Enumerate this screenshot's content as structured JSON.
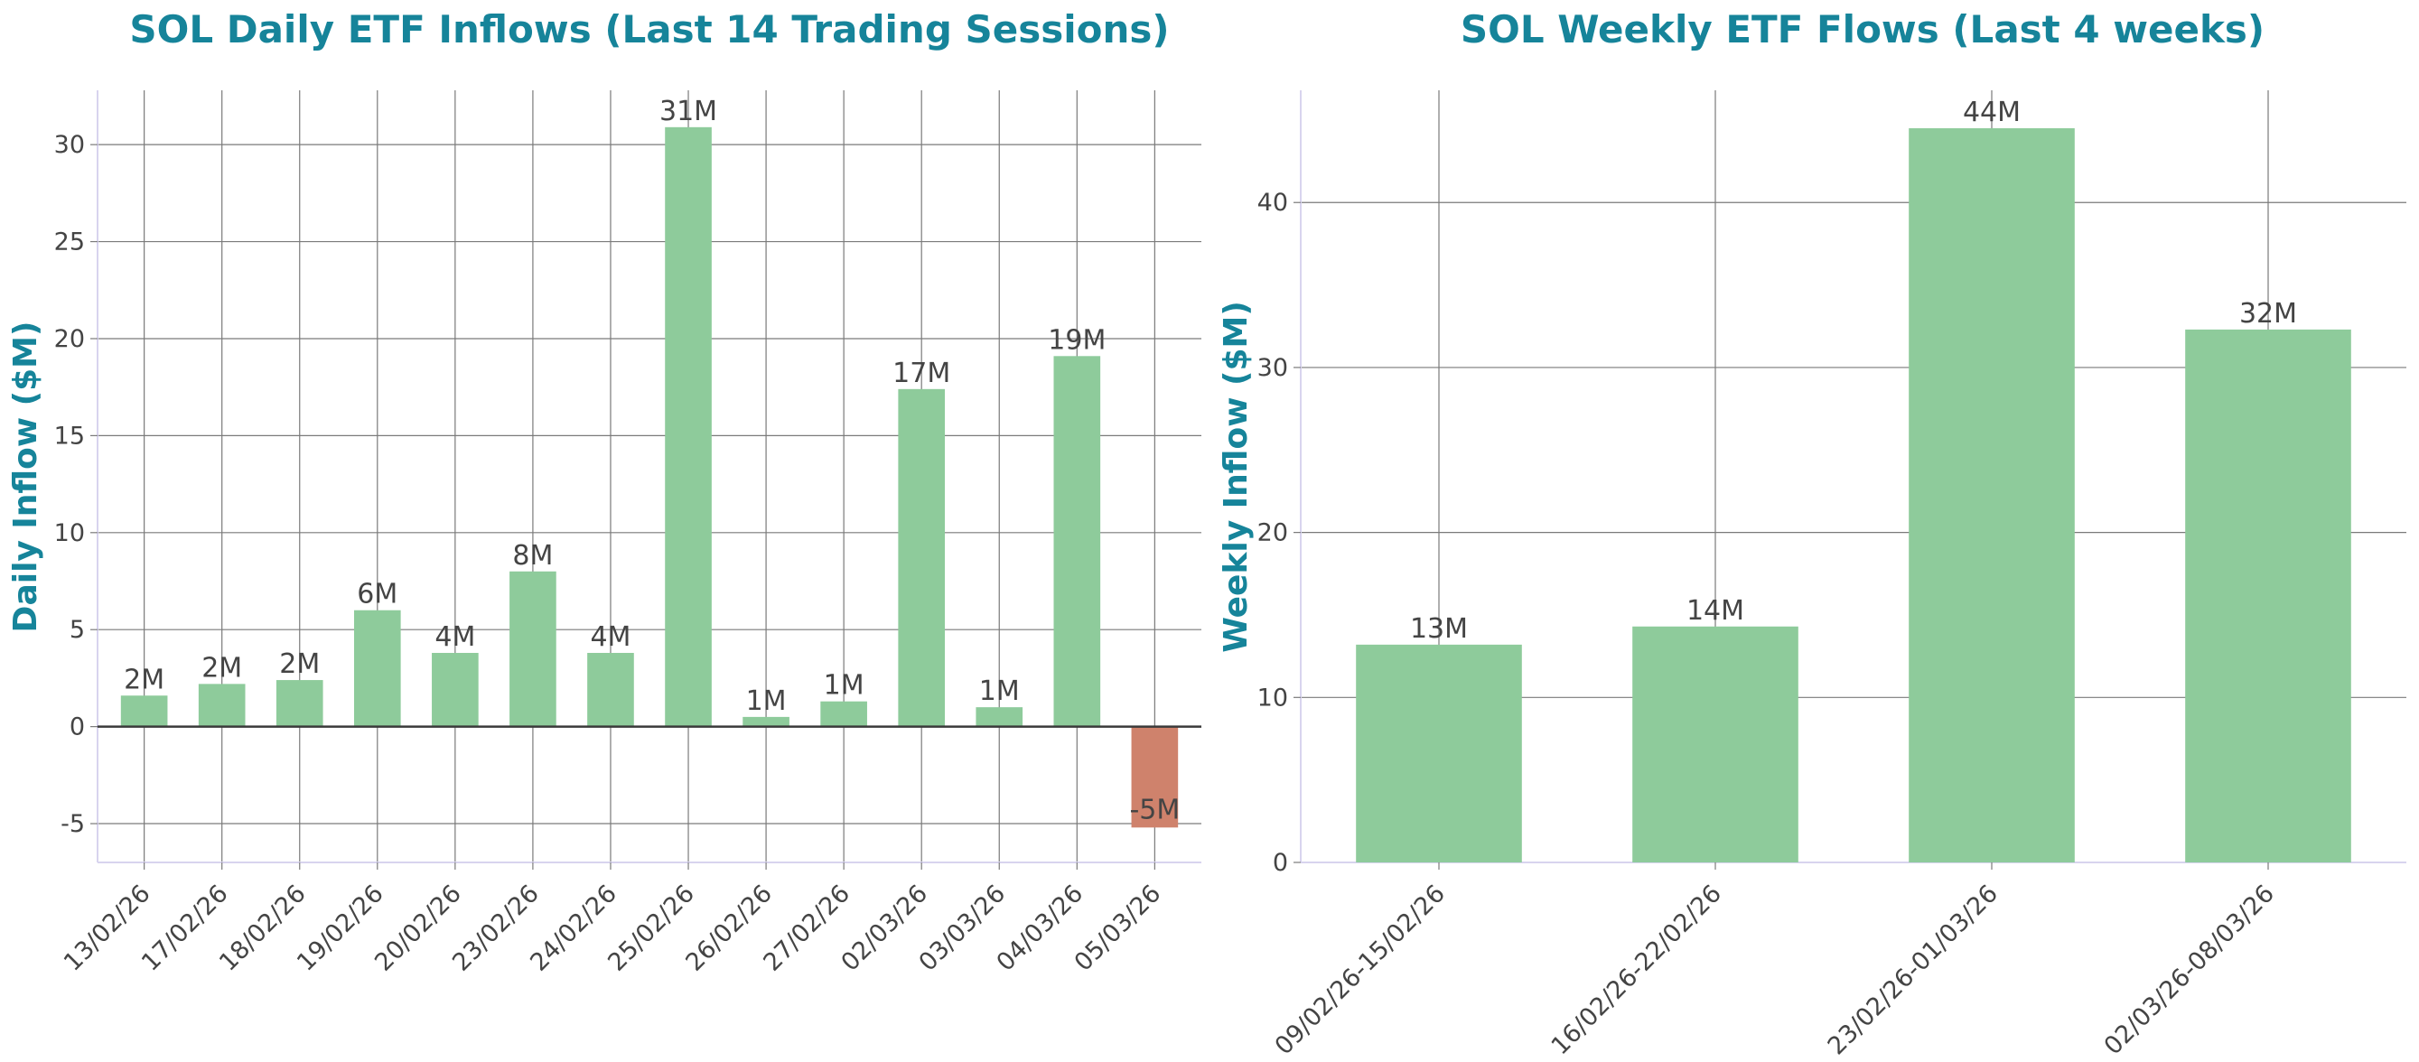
{
  "colors": {
    "title": "#16849a",
    "positive": "#8ecb9b",
    "negative": "#cf826c",
    "text": "#444444",
    "grid": "#7a7a7a"
  },
  "chart_data": [
    {
      "type": "bar",
      "title": "SOL Daily ETF Inflows (Last 14 Trading Sessions)",
      "xlabel": "",
      "ylabel": "Daily Inflow ($M)",
      "ylim": [
        -7,
        32.8
      ],
      "yticks": [
        -5,
        0,
        5,
        10,
        15,
        20,
        25,
        30
      ],
      "categories": [
        "13/02/26",
        "17/02/26",
        "18/02/26",
        "19/02/26",
        "20/02/26",
        "23/02/26",
        "24/02/26",
        "25/02/26",
        "26/02/26",
        "27/02/26",
        "02/03/26",
        "03/03/26",
        "04/03/26",
        "05/03/26"
      ],
      "values": [
        1.6,
        2.2,
        2.4,
        6.0,
        3.8,
        8.0,
        3.8,
        30.9,
        0.5,
        1.3,
        17.4,
        1.0,
        19.1,
        -5.2
      ],
      "labels": [
        "2M",
        "2M",
        "2M",
        "6M",
        "4M",
        "8M",
        "4M",
        "31M",
        "1M",
        "1M",
        "17M",
        "1M",
        "19M",
        "-5M"
      ],
      "grid": true
    },
    {
      "type": "bar",
      "title": "SOL Weekly ETF Flows (Last 4 weeks)",
      "xlabel": "",
      "ylabel": "Weekly Inflow ($M)",
      "ylim": [
        0,
        46.8
      ],
      "yticks": [
        0,
        10,
        20,
        30,
        40
      ],
      "categories": [
        "09/02/26-15/02/26",
        "16/02/26-22/02/26",
        "23/02/26-01/03/26",
        "02/03/26-08/03/26"
      ],
      "values": [
        13.2,
        14.3,
        44.5,
        32.3
      ],
      "labels": [
        "13M",
        "14M",
        "44M",
        "32M"
      ],
      "grid": true
    }
  ]
}
